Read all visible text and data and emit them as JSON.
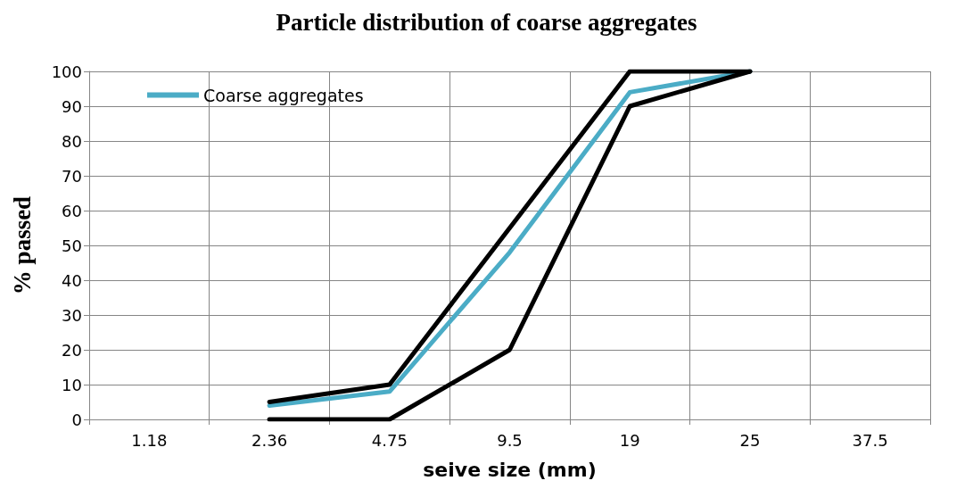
{
  "chart_data": {
    "type": "line",
    "title": "Particle distribution of coarse aggregates",
    "xlabel": "seive size (mm)",
    "ylabel": "% passed",
    "categories": [
      "1.18",
      "2.36",
      "4.75",
      "9.5",
      "19",
      "25",
      "37.5"
    ],
    "series": [
      {
        "name": "Coarse aggregates",
        "color": "#4bacc6",
        "values": [
          null,
          4,
          8,
          48,
          94,
          100,
          null
        ]
      },
      {
        "color": "#000000",
        "values": [
          null,
          5,
          10,
          55,
          100,
          100,
          null
        ]
      },
      {
        "color": "#000000",
        "values": [
          null,
          0,
          0,
          20,
          90,
          100,
          null
        ]
      }
    ],
    "ylim": [
      0,
      100
    ],
    "yticks": [
      0,
      10,
      20,
      30,
      40,
      50,
      60,
      70,
      80,
      90,
      100
    ],
    "grid": true,
    "legend": "top left",
    "marker": "none",
    "line_style": "solid"
  }
}
